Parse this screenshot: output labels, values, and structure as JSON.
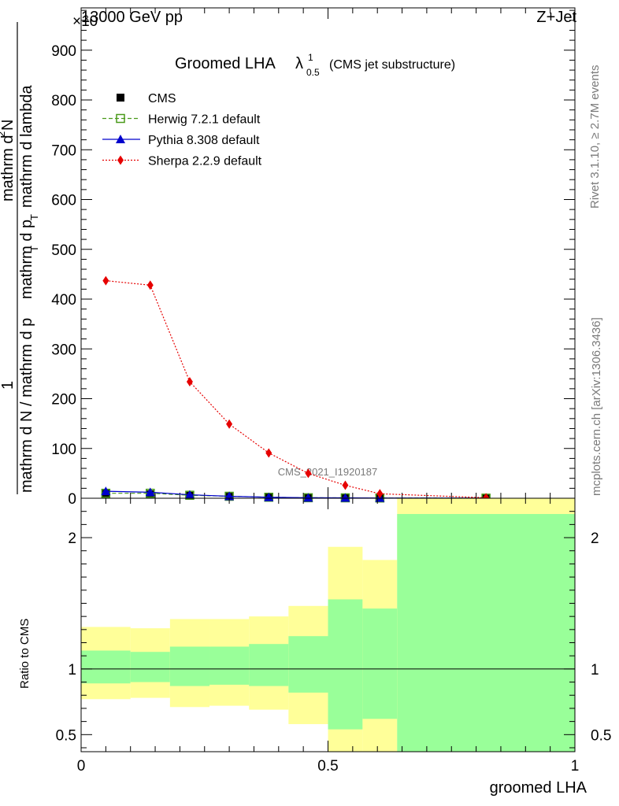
{
  "header": {
    "left": "13000 GeV pp",
    "right": "Z+Jet",
    "multiplier": "×10"
  },
  "side_text": {
    "rivet": "Rivet 3.1.10, ≥ 2.7M events",
    "mcplots": "mcplots.cern.ch [arXiv:1306.3436]"
  },
  "watermark": "CMS_2021_I1920187",
  "chart_data": [
    {
      "type": "line",
      "title_main": "Groomed LHA",
      "title_lambda": "λ",
      "title_sup": "1",
      "title_sub": "0.5",
      "title_suffix": "(CMS jet substructure)",
      "ylabel_parts": {
        "numerator_one": "1",
        "denominator": "mathrm d N / mathrm d p",
        "denominator_sub": "T",
        "numerator": "mathrm d",
        "numerator_sup": "2",
        "numerator_n": "N",
        "numerator_tail": "mathrm d p",
        "numerator_tail_sub": "T",
        "numerator_end": "mathrm d lambda"
      },
      "xlim": [
        0,
        1
      ],
      "ylim": [
        0,
        985
      ],
      "yticks": [
        0,
        100,
        200,
        300,
        400,
        500,
        600,
        700,
        800,
        900
      ],
      "ytick_labels": [
        "0",
        "100",
        "200",
        "300",
        "400",
        "500",
        "600",
        "700",
        "800",
        "900"
      ],
      "legend_placement": "top-left",
      "x": [
        0.05,
        0.14,
        0.22,
        0.3,
        0.38,
        0.46,
        0.535,
        0.605,
        0.82
      ],
      "series": [
        {
          "name": "CMS",
          "color": "#000000",
          "marker": "square",
          "values": [
            9,
            8,
            5,
            3,
            2,
            1,
            1,
            0.5,
            0.2
          ]
        },
        {
          "name": "Herwig 7.2.1 default",
          "color": "#4a9a1a",
          "marker": "open-square",
          "values": [
            10,
            10,
            6,
            4,
            2,
            1,
            0.8,
            0.5,
            0.2
          ]
        },
        {
          "name": "Pythia 8.308 default",
          "color": "#0000cc",
          "marker": "triangle",
          "values": [
            14,
            12,
            7,
            4,
            2,
            1,
            0.8,
            0.5,
            0.2
          ]
        },
        {
          "name": "Sherpa 2.2.9 default",
          "color": "#e60000",
          "marker": "diamond",
          "values": [
            437,
            428,
            234,
            149,
            91,
            50,
            26,
            9,
            1
          ]
        }
      ]
    },
    {
      "type": "area",
      "ylabel": "Ratio to CMS",
      "xlabel": "groomed LHA",
      "xlim": [
        0,
        1
      ],
      "ylim": [
        0.37,
        2.3
      ],
      "xticks": [
        0,
        0.5,
        1
      ],
      "xtick_labels": [
        "0",
        "0.5",
        "1"
      ],
      "yticks": [
        0.5,
        1,
        2
      ],
      "ytick_labels": [
        "0.5",
        "1",
        "2"
      ],
      "reference_line": 1,
      "bins": [
        {
          "lo": 0.0,
          "hi": 0.1,
          "inner": [
            0.89,
            1.14
          ],
          "outer": [
            0.77,
            1.32
          ]
        },
        {
          "lo": 0.1,
          "hi": 0.18,
          "inner": [
            0.9,
            1.13
          ],
          "outer": [
            0.78,
            1.31
          ]
        },
        {
          "lo": 0.18,
          "hi": 0.26,
          "inner": [
            0.87,
            1.17
          ],
          "outer": [
            0.71,
            1.38
          ]
        },
        {
          "lo": 0.26,
          "hi": 0.34,
          "inner": [
            0.88,
            1.17
          ],
          "outer": [
            0.72,
            1.38
          ]
        },
        {
          "lo": 0.34,
          "hi": 0.42,
          "inner": [
            0.87,
            1.19
          ],
          "outer": [
            0.69,
            1.4
          ]
        },
        {
          "lo": 0.42,
          "hi": 0.5,
          "inner": [
            0.82,
            1.25
          ],
          "outer": [
            0.58,
            1.48
          ]
        },
        {
          "lo": 0.5,
          "hi": 0.57,
          "inner": [
            0.54,
            1.53
          ],
          "outer": [
            0.37,
            1.93
          ]
        },
        {
          "lo": 0.57,
          "hi": 0.64,
          "inner": [
            0.62,
            1.46
          ],
          "outer": [
            0.37,
            1.83
          ]
        },
        {
          "lo": 0.64,
          "hi": 1.0,
          "inner": [
            0.37,
            2.18
          ],
          "outer": [
            0.37,
            2.3
          ]
        }
      ],
      "inner_color": "#99ff99",
      "outer_color": "#ffff99"
    }
  ]
}
